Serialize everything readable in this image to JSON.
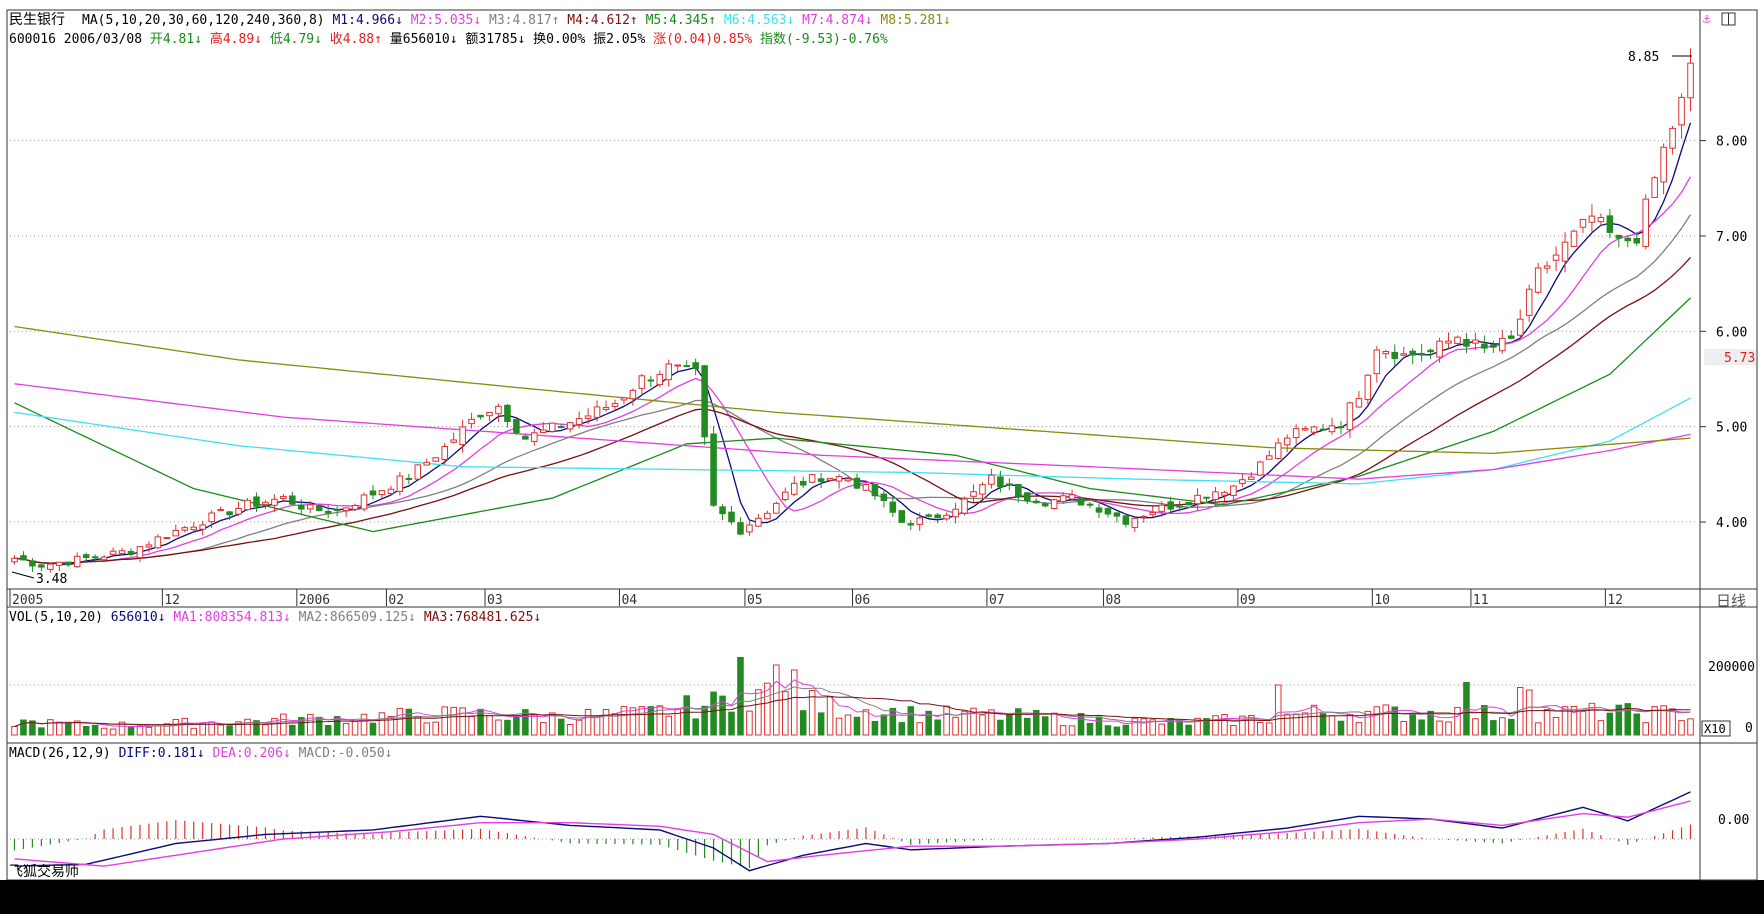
{
  "header": {
    "stock_name": "民生银行",
    "ma_label": "MA(5,10,20,30,60,120,240,360,8)",
    "ma_values": [
      {
        "label": "M1:4.966",
        "arrow": "↓",
        "color": "#0a0a7a"
      },
      {
        "label": "M2:5.035",
        "arrow": "↓",
        "color": "#e040e0"
      },
      {
        "label": "M3:4.817",
        "arrow": "↑",
        "color": "#808080"
      },
      {
        "label": "M4:4.612",
        "arrow": "↑",
        "color": "#7a1010"
      },
      {
        "label": "M5:4.345",
        "arrow": "↑",
        "color": "#1a8a1a"
      },
      {
        "label": "M6:4.563",
        "arrow": "↓",
        "color": "#40e0f0"
      },
      {
        "label": "M7:4.874",
        "arrow": "↓",
        "color": "#e040e0"
      },
      {
        "label": "M8:5.281",
        "arrow": "↓",
        "color": "#8a8a10"
      }
    ],
    "line2": [
      {
        "text": "600016 2006/03/08",
        "color": "#000000"
      },
      {
        "text": " 开4.81↓",
        "color": "#1a8a1a"
      },
      {
        "text": " 高4.89↓",
        "color": "#e02020"
      },
      {
        "text": " 低4.79↓",
        "color": "#1a8a1a"
      },
      {
        "text": " 收4.88↑",
        "color": "#e02020"
      },
      {
        "text": " 量656010↓",
        "color": "#000000"
      },
      {
        "text": " 额31785↓",
        "color": "#000000"
      },
      {
        "text": " 换0.00%",
        "color": "#000000"
      },
      {
        "text": " 振2.05%",
        "color": "#000000"
      },
      {
        "text": " 涨(0.04)0.85%",
        "color": "#e02020"
      },
      {
        "text": " 指数(-9.53)-0.76%",
        "color": "#1a8a1a"
      }
    ]
  },
  "main_axis": {
    "tick_labels": [
      "8.00",
      "7.00",
      "6.00",
      "5.00",
      "4.00"
    ],
    "ticks": [
      8,
      7,
      6,
      5,
      4
    ],
    "ylim": [
      3.35,
      8.95
    ],
    "current_price_label": "5.73",
    "current_price": 5.73,
    "high_label": "8.85",
    "low_label": "3.48"
  },
  "x_labels": [
    {
      "text": "2005",
      "i": 0
    },
    {
      "text": "12",
      "i": 17
    },
    {
      "text": "2006",
      "i": 32
    },
    {
      "text": "02",
      "i": 42
    },
    {
      "text": "03",
      "i": 53
    },
    {
      "text": "04",
      "i": 68
    },
    {
      "text": "05",
      "i": 82
    },
    {
      "text": "06",
      "i": 94
    },
    {
      "text": "07",
      "i": 109
    },
    {
      "text": "08",
      "i": 122
    },
    {
      "text": "09",
      "i": 137
    },
    {
      "text": "10",
      "i": 152
    },
    {
      "text": "11",
      "i": 163
    },
    {
      "text": "12",
      "i": 178
    }
  ],
  "period_label": "日线",
  "vol_panel": {
    "title": "VOL(5,10,20)",
    "items": [
      {
        "text": "656010↓",
        "color": "#0a0a7a"
      },
      {
        "text": "MA1:808354.813↓",
        "color": "#e040e0"
      },
      {
        "text": "MA2:866509.125↓",
        "color": "#808080"
      },
      {
        "text": "MA3:768481.625↓",
        "color": "#7a1010"
      }
    ],
    "tick_label": "200000",
    "zero_label": "0",
    "unit_label": "X10"
  },
  "macd_panel": {
    "title": "MACD(26,12,9)",
    "items": [
      {
        "text": "DIFF:0.181↓",
        "color": "#0a0a7a"
      },
      {
        "text": "DEA:0.206↓",
        "color": "#e040e0"
      },
      {
        "text": "MACD:-0.050↓",
        "color": "#808080"
      }
    ],
    "tick_label": "0.00"
  },
  "watermark": "飞狐交易师",
  "colors": {
    "up": "#e03030",
    "down": "#228b22",
    "grid": "#999999",
    "frame": "#333333"
  },
  "chart_data": {
    "type": "candlestick",
    "x_range": [
      "2005",
      "12"
    ],
    "close_keypoints": [
      [
        0,
        3.62
      ],
      [
        3,
        3.55
      ],
      [
        8,
        3.62
      ],
      [
        13,
        3.7
      ],
      [
        17,
        3.87
      ],
      [
        22,
        4.05
      ],
      [
        26,
        4.18
      ],
      [
        30,
        4.25
      ],
      [
        33,
        4.13
      ],
      [
        36,
        4.12
      ],
      [
        40,
        4.3
      ],
      [
        44,
        4.48
      ],
      [
        48,
        4.78
      ],
      [
        52,
        5.15
      ],
      [
        54,
        5.22
      ],
      [
        57,
        4.88
      ],
      [
        60,
        4.98
      ],
      [
        64,
        5.12
      ],
      [
        67,
        5.25
      ],
      [
        70,
        5.5
      ],
      [
        73,
        5.62
      ],
      [
        76,
        5.55
      ],
      [
        78,
        4.15
      ],
      [
        81,
        3.92
      ],
      [
        84,
        4.12
      ],
      [
        87,
        4.38
      ],
      [
        90,
        4.48
      ],
      [
        93,
        4.46
      ],
      [
        96,
        4.28
      ],
      [
        99,
        4.0
      ],
      [
        102,
        4.02
      ],
      [
        106,
        4.22
      ],
      [
        109,
        4.45
      ],
      [
        112,
        4.3
      ],
      [
        115,
        4.22
      ],
      [
        118,
        4.25
      ],
      [
        121,
        4.15
      ],
      [
        124,
        4.02
      ],
      [
        127,
        4.12
      ],
      [
        130,
        4.2
      ],
      [
        133,
        4.3
      ],
      [
        136,
        4.38
      ],
      [
        139,
        4.6
      ],
      [
        142,
        4.9
      ],
      [
        145,
        4.98
      ],
      [
        148,
        5.05
      ],
      [
        150,
        5.35
      ],
      [
        152,
        5.85
      ],
      [
        155,
        5.75
      ],
      [
        158,
        5.78
      ],
      [
        161,
        5.95
      ],
      [
        164,
        5.8
      ],
      [
        167,
        5.9
      ],
      [
        170,
        6.6
      ],
      [
        173,
        6.9
      ],
      [
        176,
        7.2
      ],
      [
        179,
        6.92
      ],
      [
        181,
        7.0
      ],
      [
        184,
        7.9
      ],
      [
        186,
        8.4
      ],
      [
        187,
        8.75
      ]
    ],
    "volume_keypoints": [
      [
        0,
        0.26
      ],
      [
        10,
        0.18
      ],
      [
        20,
        0.24
      ],
      [
        30,
        0.3
      ],
      [
        40,
        0.36
      ],
      [
        50,
        0.42
      ],
      [
        60,
        0.36
      ],
      [
        70,
        0.42
      ],
      [
        78,
        0.62
      ],
      [
        82,
        0.86
      ],
      [
        85,
        0.82
      ],
      [
        90,
        0.58
      ],
      [
        100,
        0.42
      ],
      [
        110,
        0.38
      ],
      [
        120,
        0.3
      ],
      [
        130,
        0.24
      ],
      [
        138,
        0.32
      ],
      [
        145,
        0.44
      ],
      [
        155,
        0.44
      ],
      [
        165,
        0.42
      ],
      [
        175,
        0.45
      ],
      [
        187,
        0.42
      ]
    ],
    "volume_spikes": [
      [
        81,
        1.55
      ],
      [
        85,
        1.4
      ],
      [
        87,
        1.3
      ],
      [
        141,
        1.0
      ],
      [
        162,
        1.05
      ],
      [
        168,
        0.95
      ],
      [
        169,
        0.9
      ]
    ],
    "ma_series": [
      {
        "name": "M1",
        "period": 5
      },
      {
        "name": "M2",
        "period": 10
      },
      {
        "name": "M3",
        "period": 20
      },
      {
        "name": "M4",
        "period": 30
      },
      {
        "name": "M5",
        "period": 60
      },
      {
        "name": "M6",
        "period": 120
      },
      {
        "name": "M7",
        "period": 240
      },
      {
        "name": "M8",
        "period": 360
      }
    ],
    "ma_long_keypoints": {
      "M5": [
        [
          0,
          5.25
        ],
        [
          20,
          4.35
        ],
        [
          40,
          3.9
        ],
        [
          60,
          4.25
        ],
        [
          75,
          4.82
        ],
        [
          85,
          4.88
        ],
        [
          105,
          4.7
        ],
        [
          120,
          4.35
        ],
        [
          135,
          4.18
        ],
        [
          150,
          4.48
        ],
        [
          165,
          4.95
        ],
        [
          178,
          5.55
        ],
        [
          187,
          6.35
        ]
      ],
      "M6": [
        [
          0,
          5.15
        ],
        [
          25,
          4.8
        ],
        [
          50,
          4.58
        ],
        [
          75,
          4.55
        ],
        [
          100,
          4.52
        ],
        [
          125,
          4.45
        ],
        [
          150,
          4.4
        ],
        [
          165,
          4.55
        ],
        [
          178,
          4.85
        ],
        [
          187,
          5.3
        ]
      ],
      "M7": [
        [
          0,
          5.45
        ],
        [
          30,
          5.1
        ],
        [
          60,
          4.9
        ],
        [
          90,
          4.7
        ],
        [
          120,
          4.58
        ],
        [
          150,
          4.45
        ],
        [
          165,
          4.55
        ],
        [
          178,
          4.75
        ],
        [
          187,
          4.92
        ]
      ],
      "M8": [
        [
          0,
          6.05
        ],
        [
          25,
          5.7
        ],
        [
          55,
          5.42
        ],
        [
          85,
          5.15
        ],
        [
          115,
          4.95
        ],
        [
          140,
          4.78
        ],
        [
          165,
          4.72
        ],
        [
          187,
          4.88
        ]
      ]
    },
    "macd_keypoints": {
      "DIFF": [
        [
          0,
          -0.3
        ],
        [
          8,
          -0.28
        ],
        [
          18,
          -0.05
        ],
        [
          28,
          0.05
        ],
        [
          40,
          0.1
        ],
        [
          52,
          0.25
        ],
        [
          62,
          0.15
        ],
        [
          72,
          0.1
        ],
        [
          78,
          -0.1
        ],
        [
          82,
          -0.35
        ],
        [
          88,
          -0.18
        ],
        [
          95,
          -0.05
        ],
        [
          100,
          -0.12
        ],
        [
          110,
          -0.08
        ],
        [
          122,
          -0.05
        ],
        [
          132,
          0.02
        ],
        [
          142,
          0.12
        ],
        [
          150,
          0.25
        ],
        [
          158,
          0.22
        ],
        [
          166,
          0.12
        ],
        [
          175,
          0.35
        ],
        [
          180,
          0.2
        ],
        [
          187,
          0.52
        ]
      ],
      "DEA": [
        [
          0,
          -0.22
        ],
        [
          10,
          -0.3
        ],
        [
          20,
          -0.15
        ],
        [
          30,
          0.0
        ],
        [
          42,
          0.08
        ],
        [
          52,
          0.18
        ],
        [
          62,
          0.18
        ],
        [
          72,
          0.14
        ],
        [
          78,
          0.05
        ],
        [
          84,
          -0.25
        ],
        [
          90,
          -0.18
        ],
        [
          100,
          -0.08
        ],
        [
          110,
          -0.08
        ],
        [
          122,
          -0.05
        ],
        [
          132,
          0.0
        ],
        [
          142,
          0.08
        ],
        [
          150,
          0.18
        ],
        [
          158,
          0.22
        ],
        [
          166,
          0.15
        ],
        [
          175,
          0.28
        ],
        [
          180,
          0.24
        ],
        [
          187,
          0.42
        ]
      ]
    },
    "macd_ylim": [
      -0.42,
      0.85
    ],
    "volume_ylim": [
      0,
      2.1
    ]
  }
}
